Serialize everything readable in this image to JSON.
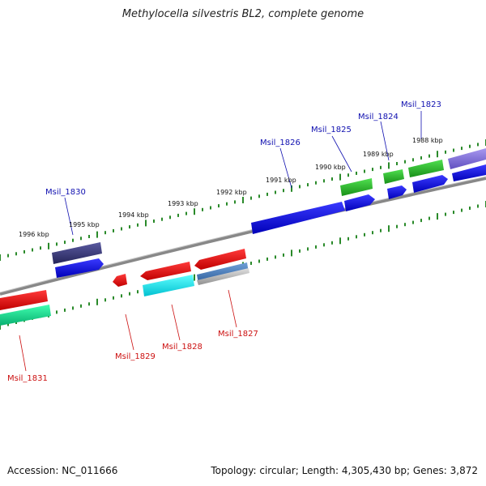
{
  "title": "Methylocella silvestris BL2, complete genome",
  "footer": {
    "accession": "Accession: NC_011666",
    "stats": "Topology: circular; Length: 4,305,430 bp; Genes: 3,872"
  },
  "kbp_labels": [
    "1988 kbp",
    "1989 kbp",
    "1990 kbp",
    "1991 kbp",
    "1992 kbp",
    "1993 kbp",
    "1994 kbp",
    "1995 kbp",
    "1996 kbp"
  ],
  "gene_labels": [
    "Msil_1823",
    "Msil_1824",
    "Msil_1825",
    "Msil_1826",
    "Msil_1827",
    "Msil_1828",
    "Msil_1829",
    "Msil_1830",
    "Msil_1831"
  ],
  "colors": {
    "forward_label": "#1010b0",
    "reverse_label": "#cc1010",
    "blue": "#0a0adc",
    "red": "#e60a0a",
    "green": "#22c022",
    "mint": "#10d890",
    "cyan": "#10e8f0",
    "navy": "#3a3a80",
    "lavender": "#8070d8",
    "steel": "#4a7ab8",
    "silver": "#b8b8b8",
    "tick": "#2a8a2a",
    "axis": "#808080"
  }
}
